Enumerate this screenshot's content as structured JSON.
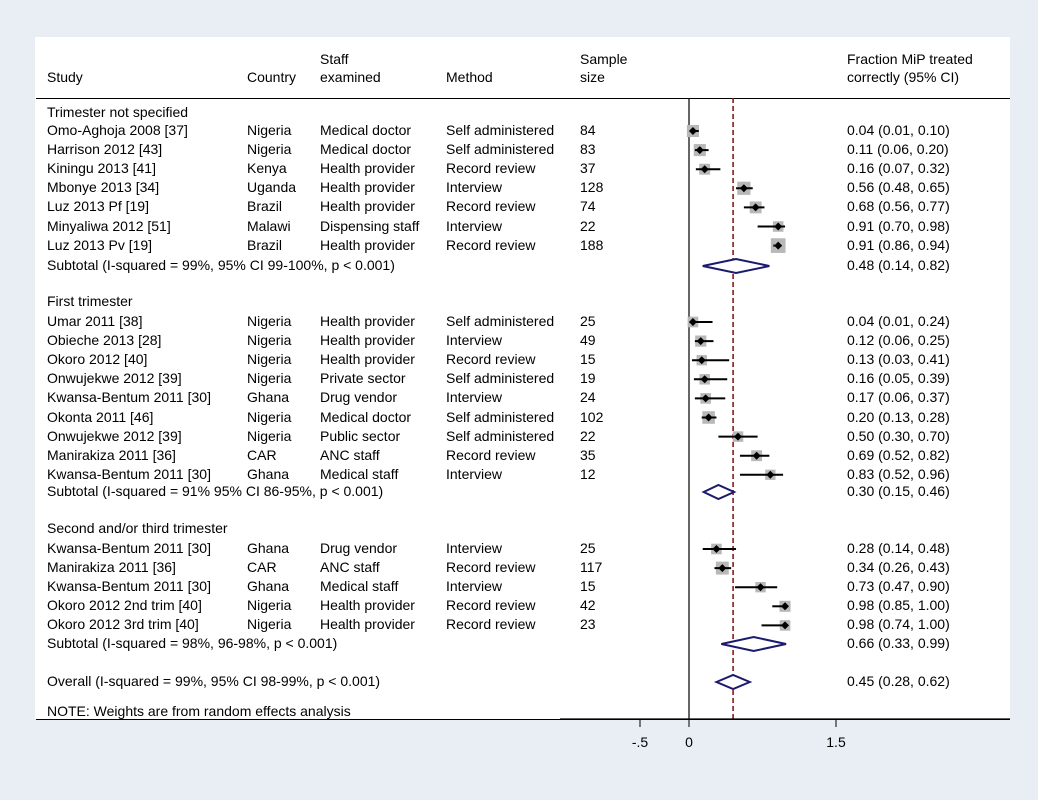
{
  "headers": {
    "study": "Study",
    "country": "Country",
    "staff_line1": "Staff",
    "staff_line2": "examined",
    "method": "Method",
    "sample_line1": "Sample",
    "sample_line2": "size",
    "ci_line1": "Fraction MiP treated",
    "ci_line2": "correctly (95% CI)"
  },
  "note": "NOTE: Weights are from random effects analysis",
  "axis": {
    "ticks": [
      {
        "value": -0.5,
        "label": "-.5"
      },
      {
        "value": 0,
        "label": "0"
      },
      {
        "value": 1.5,
        "label": "1.5"
      }
    ]
  },
  "plot": {
    "xmin": -0.5,
    "xmax": 1.5,
    "reference_line": 0.45
  },
  "groups": [
    {
      "title": "Trimester not specified",
      "studies": [
        {
          "study": "Omo-Aghoja 2008 [37]",
          "country": "Nigeria",
          "staff": "Medical doctor",
          "method": "Self administered",
          "n": "84",
          "est": 0.04,
          "lo": 0.01,
          "hi": 0.1,
          "ci": "0.04 (0.01, 0.10)"
        },
        {
          "study": "Harrison 2012 [43]",
          "country": "Nigeria",
          "staff": "Medical doctor",
          "method": "Self administered",
          "n": "83",
          "est": 0.11,
          "lo": 0.06,
          "hi": 0.2,
          "ci": "0.11 (0.06, 0.20)"
        },
        {
          "study": "Kiningu 2013 [41]",
          "country": "Kenya",
          "staff": "Health provider",
          "method": "Record review",
          "n": "37",
          "est": 0.16,
          "lo": 0.07,
          "hi": 0.32,
          "ci": "0.16 (0.07, 0.32)"
        },
        {
          "study": "Mbonye 2013 [34]",
          "country": "Uganda",
          "staff": "Health provider",
          "method": "Interview",
          "n": "128",
          "est": 0.56,
          "lo": 0.48,
          "hi": 0.65,
          "ci": "0.56 (0.48, 0.65)"
        },
        {
          "study": "Luz 2013 Pf [19]",
          "country": "Brazil",
          "staff": "Health provider",
          "method": "Record review",
          "n": "74",
          "est": 0.68,
          "lo": 0.56,
          "hi": 0.77,
          "ci": "0.68 (0.56, 0.77)"
        },
        {
          "study": "Minyaliwa 2012 [51]",
          "country": "Malawi",
          "staff": "Dispensing staff",
          "method": "Interview",
          "n": "22",
          "est": 0.91,
          "lo": 0.7,
          "hi": 0.98,
          "ci": "0.91 (0.70, 0.98)"
        },
        {
          "study": "Luz 2013 Pv [19]",
          "country": "Brazil",
          "staff": "Health provider",
          "method": "Record review",
          "n": "188",
          "est": 0.91,
          "lo": 0.86,
          "hi": 0.94,
          "ci": "0.91 (0.86, 0.94)"
        }
      ],
      "subtotal": {
        "label": "Subtotal  (I-squared = 99%, 95% CI 99-100%, p < 0.001)",
        "est": 0.48,
        "lo": 0.14,
        "hi": 0.82,
        "ci": "0.48 (0.14, 0.82)"
      }
    },
    {
      "title": "First trimester",
      "studies": [
        {
          "study": "Umar 2011 [38]",
          "country": "Nigeria",
          "staff": "Health provider",
          "method": "Self administered",
          "n": "25",
          "est": 0.04,
          "lo": 0.01,
          "hi": 0.24,
          "ci": "0.04 (0.01, 0.24)"
        },
        {
          "study": "Obieche 2013 [28]",
          "country": "Nigeria",
          "staff": "Health provider",
          "method": "Interview",
          "n": "49",
          "est": 0.12,
          "lo": 0.06,
          "hi": 0.25,
          "ci": "0.12 (0.06, 0.25)"
        },
        {
          "study": "Okoro 2012 [40]",
          "country": "Nigeria",
          "staff": "Health provider",
          "method": "Record review",
          "n": "15",
          "est": 0.13,
          "lo": 0.03,
          "hi": 0.41,
          "ci": "0.13 (0.03, 0.41)"
        },
        {
          "study": "Onwujekwe 2012 [39]",
          "country": "Nigeria",
          "staff": "Private sector",
          "method": "Self administered",
          "n": "19",
          "est": 0.16,
          "lo": 0.05,
          "hi": 0.39,
          "ci": "0.16 (0.05, 0.39)"
        },
        {
          "study": "Kwansa-Bentum 2011 [30]",
          "country": "Ghana",
          "staff": "Drug vendor",
          "method": "Interview",
          "n": "24",
          "est": 0.17,
          "lo": 0.06,
          "hi": 0.37,
          "ci": "0.17 (0.06, 0.37)"
        },
        {
          "study": "Okonta 2011 [46]",
          "country": "Nigeria",
          "staff": "Medical doctor",
          "method": "Self administered",
          "n": "102",
          "est": 0.2,
          "lo": 0.13,
          "hi": 0.28,
          "ci": "0.20 (0.13, 0.28)"
        },
        {
          "study": "Onwujekwe 2012 [39]",
          "country": "Nigeria",
          "staff": "Public sector",
          "method": "Self administered",
          "n": "22",
          "est": 0.5,
          "lo": 0.3,
          "hi": 0.7,
          "ci": "0.50 (0.30, 0.70)"
        },
        {
          "study": "Manirakiza 2011 [36]",
          "country": "CAR",
          "staff": "ANC staff",
          "method": "Record review",
          "n": "35",
          "est": 0.69,
          "lo": 0.52,
          "hi": 0.82,
          "ci": "0.69 (0.52, 0.82)"
        },
        {
          "study": "Kwansa-Bentum 2011 [30]",
          "country": "Ghana",
          "staff": "Medical staff",
          "method": "Interview",
          "n": "12",
          "est": 0.83,
          "lo": 0.52,
          "hi": 0.96,
          "ci": "0.83 (0.52, 0.96)"
        }
      ],
      "subtotal": {
        "label": "Subtotal  (I-squared = 91% 95% CI 86-95%, p < 0.001)",
        "est": 0.3,
        "lo": 0.15,
        "hi": 0.46,
        "ci": "0.30 (0.15, 0.46)"
      }
    },
    {
      "title": "Second and/or third trimester",
      "studies": [
        {
          "study": "Kwansa-Bentum 2011 [30]",
          "country": "Ghana",
          "staff": "Drug vendor",
          "method": "Interview",
          "n": "25",
          "est": 0.28,
          "lo": 0.14,
          "hi": 0.48,
          "ci": "0.28 (0.14, 0.48)"
        },
        {
          "study": "Manirakiza 2011 [36]",
          "country": "CAR",
          "staff": "ANC staff",
          "method": "Record review",
          "n": "117",
          "est": 0.34,
          "lo": 0.26,
          "hi": 0.43,
          "ci": "0.34 (0.26, 0.43)"
        },
        {
          "study": "Kwansa-Bentum 2011 [30]",
          "country": "Ghana",
          "staff": "Medical staff",
          "method": "Interview",
          "n": "15",
          "est": 0.73,
          "lo": 0.47,
          "hi": 0.9,
          "ci": "0.73 (0.47, 0.90)"
        },
        {
          "study": "Okoro 2012 2nd trim [40]",
          "country": "Nigeria",
          "staff": "Health provider",
          "method": "Record review",
          "n": "42",
          "est": 0.98,
          "lo": 0.85,
          "hi": 1.0,
          "ci": "0.98 (0.85, 1.00)"
        },
        {
          "study": "Okoro 2012 3rd trim [40]",
          "country": "Nigeria",
          "staff": "Health provider",
          "method": "Record review",
          "n": "23",
          "est": 0.98,
          "lo": 0.74,
          "hi": 1.0,
          "ci": "0.98 (0.74, 1.00)"
        }
      ],
      "subtotal": {
        "label": "Subtotal  (I-squared = 98%, 96-98%, p < 0.001)",
        "est": 0.66,
        "lo": 0.33,
        "hi": 0.99,
        "ci": "0.66 (0.33, 0.99)"
      }
    }
  ],
  "overall": {
    "label": "Overall  (I-squared = 99%, 95% CI 98-99%, p < 0.001)",
    "est": 0.45,
    "lo": 0.28,
    "hi": 0.62,
    "ci": "0.45 (0.28, 0.62)"
  },
  "colors": {
    "background": "#e8eef4",
    "panel": "#ffffff",
    "diamond": "#1a1a6e",
    "reference_line": "#8b1a1a",
    "weight_box": "#b8b8b8",
    "marker": "#000000"
  }
}
